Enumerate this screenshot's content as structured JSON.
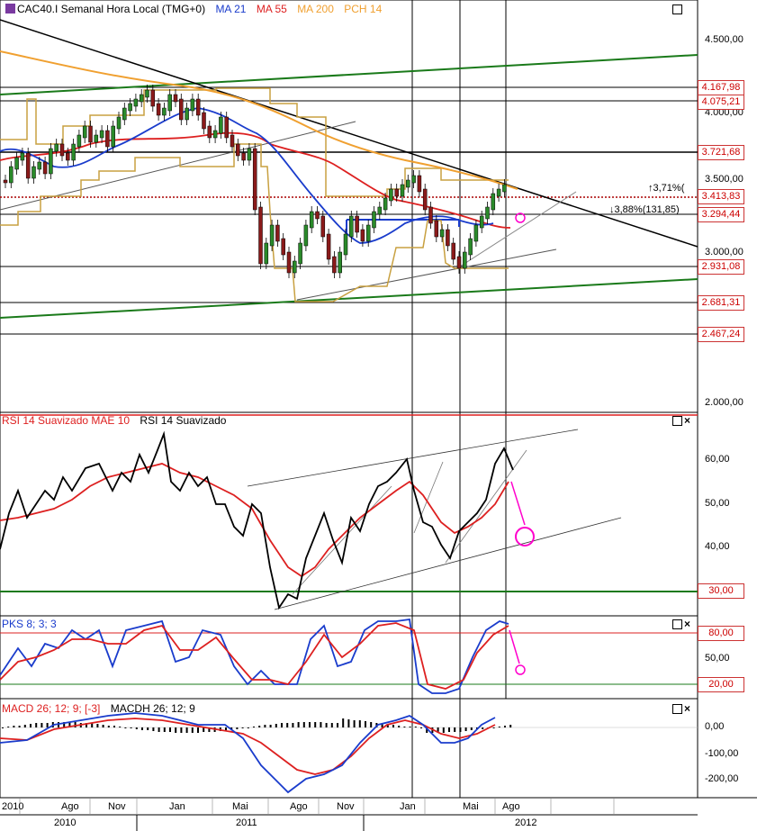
{
  "main_header": {
    "symbol": "CAC40.I Semanal Hora Local (TMG+0)",
    "ma21": "MA 21",
    "ma55": "MA 55",
    "ma200": "MA 200",
    "pch": "PCH 14"
  },
  "rsi_header": {
    "a": "RSI 14 Suavizado MAE 10",
    "b": "RSI 14 Suavizado"
  },
  "pks_header": {
    "a": "PKS 8; 3; 3"
  },
  "macd_header": {
    "a": "MACD 26; 12; 9; [-3]",
    "b": "MACDH 26; 12; 9"
  },
  "colors": {
    "ma21": "#1a3ccc",
    "ma55": "#dd2020",
    "ma200": "#f0a030",
    "pch": "#c8a040",
    "trend_green": "#1a7a1a",
    "annot": "#ff00cc"
  },
  "price_axis": {
    "ticks": [
      "4.500,00",
      "4.000,00",
      "3.500,00",
      "3.000,00",
      "2.000,00"
    ]
  },
  "price_levels": [
    "4.167,98",
    "4.075,21",
    "3.721,68",
    "3.413,83",
    "3.294,44",
    "2.931,08",
    "2.681,31",
    "2.467,24"
  ],
  "annotations": {
    "up": "3,71%(",
    "down": "3,88%(131,85)"
  },
  "rsi_axis": {
    "ticks": [
      "60,00",
      "50,00",
      "40,00",
      "30,00"
    ]
  },
  "pks_axis": {
    "ticks": [
      "80,00",
      "50,00",
      "20,00"
    ]
  },
  "macd_axis": {
    "ticks": [
      "0,00",
      "-100,00",
      "-200,00"
    ]
  },
  "time_axis": {
    "months": [
      "2010",
      "Ago",
      "Nov",
      "Jan",
      "Mai",
      "Ago",
      "Nov",
      "Jan",
      "Mai",
      "Ago"
    ],
    "years": [
      "2010",
      "2011",
      "2012"
    ]
  },
  "chart_data": [
    {
      "type": "line",
      "title": "CAC40.I Semanal",
      "x": [
        "2010-06",
        "2010-08",
        "2010-11",
        "2011-01",
        "2011-05",
        "2011-08",
        "2011-11",
        "2012-01",
        "2012-05",
        "2012-08"
      ],
      "series": [
        {
          "name": "MA 21",
          "values": [
            3600,
            3700,
            3800,
            4000,
            3950,
            3400,
            3050,
            3250,
            3300,
            3280
          ]
        },
        {
          "name": "MA 55",
          "values": [
            3650,
            3650,
            3700,
            3800,
            3850,
            3650,
            3400,
            3350,
            3250,
            3200
          ]
        },
        {
          "name": "MA 200",
          "values": [
            4300,
            4200,
            4000,
            4050,
            3950,
            3700,
            3600,
            3550,
            3500,
            3450
          ]
        }
      ],
      "ylim": [
        2000,
        4600
      ],
      "scale": "log"
    },
    {
      "type": "line",
      "title": "RSI 14 Suavizado MAE 10",
      "series": [
        {
          "name": "RSI 14 Suavizado",
          "values": [
            45,
            55,
            52,
            63,
            55,
            40,
            27,
            45,
            58,
            62,
            40,
            55,
            62
          ]
        },
        {
          "name": "RSI 14 Suavizado MAE 10",
          "values": [
            46,
            51,
            53,
            58,
            53,
            44,
            33,
            42,
            50,
            55,
            46,
            50,
            55
          ]
        }
      ],
      "ylim": [
        25,
        68
      ]
    },
    {
      "type": "line",
      "title": "PKS 8; 3; 3",
      "ylim": [
        0,
        100
      ]
    },
    {
      "type": "line",
      "title": "MACD 26; 12; 9; [-3]",
      "ylim": [
        -260,
        70
      ]
    }
  ]
}
